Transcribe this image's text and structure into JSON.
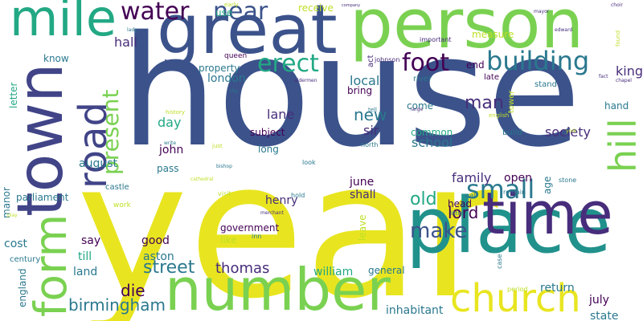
{
  "palette": {
    "yellow": "#e8e520",
    "navy": "#3b528b",
    "indigo": "#414487",
    "purple": "#472d7b",
    "deep": "#440154",
    "teal": "#21918c",
    "teal2": "#2a788e",
    "green": "#22a884",
    "lime": "#7ad151",
    "light": "#bddf26"
  },
  "words": [
    {
      "text": "house",
      "c": "navy"
    },
    {
      "text": "year",
      "c": "yellow"
    },
    {
      "text": "person",
      "c": "lime"
    },
    {
      "text": "great",
      "c": "navy"
    },
    {
      "text": "place",
      "c": "teal"
    },
    {
      "text": "town",
      "c": "indigo"
    },
    {
      "text": "time",
      "c": "purple"
    },
    {
      "text": "number",
      "c": "lime"
    },
    {
      "text": "mile",
      "c": "green"
    },
    {
      "text": "church",
      "c": "yellow"
    },
    {
      "text": "form",
      "c": "lime"
    },
    {
      "text": "road",
      "c": "indigo"
    },
    {
      "text": "hill",
      "c": "lime"
    },
    {
      "text": "water",
      "c": "deep"
    },
    {
      "text": "near",
      "c": "navy"
    },
    {
      "text": "building",
      "c": "teal2"
    },
    {
      "text": "foot",
      "c": "deep"
    },
    {
      "text": "erect",
      "c": "green"
    },
    {
      "text": "small",
      "c": "teal2"
    },
    {
      "text": "present",
      "c": "lime"
    },
    {
      "text": "make",
      "c": "navy"
    },
    {
      "text": "street",
      "c": "teal2"
    },
    {
      "text": "birmingham",
      "c": "teal2"
    },
    {
      "text": "old",
      "c": "green"
    },
    {
      "text": "man",
      "c": "purple"
    },
    {
      "text": "lord",
      "c": "deep"
    },
    {
      "text": "new",
      "c": "teal2"
    },
    {
      "text": "thomas",
      "c": "purple"
    },
    {
      "text": "die",
      "c": "deep"
    },
    {
      "text": "school",
      "c": "teal2"
    },
    {
      "text": "society",
      "c": "purple"
    },
    {
      "text": "hall",
      "c": "purple"
    },
    {
      "text": "local",
      "c": "teal2"
    },
    {
      "text": "lane",
      "c": "purple"
    },
    {
      "text": "day",
      "c": "green"
    },
    {
      "text": "sir",
      "c": "purple"
    },
    {
      "text": "family",
      "c": "purple"
    },
    {
      "text": "king",
      "c": "purple"
    },
    {
      "text": "london",
      "c": "teal2"
    },
    {
      "text": "august",
      "c": "teal2"
    },
    {
      "text": "john",
      "c": "deep"
    },
    {
      "text": "henry",
      "c": "purple"
    },
    {
      "text": "june",
      "c": "deep"
    },
    {
      "text": "shall",
      "c": "purple"
    },
    {
      "text": "open",
      "c": "deep"
    },
    {
      "text": "july",
      "c": "deep"
    },
    {
      "text": "william",
      "c": "green"
    },
    {
      "text": "aston",
      "c": "teal2"
    },
    {
      "text": "good",
      "c": "deep"
    },
    {
      "text": "say",
      "c": "deep"
    },
    {
      "text": "cost",
      "c": "teal2"
    },
    {
      "text": "land",
      "c": "teal2"
    },
    {
      "text": "till",
      "c": "green"
    },
    {
      "text": "return",
      "c": "teal2"
    },
    {
      "text": "inhabitant",
      "c": "teal2"
    },
    {
      "text": "state",
      "c": "teal2"
    },
    {
      "text": "parliament",
      "c": "teal2"
    },
    {
      "text": "property",
      "c": "teal2"
    },
    {
      "text": "government",
      "c": "deep"
    },
    {
      "text": "subject",
      "c": "deep"
    },
    {
      "text": "long",
      "c": "teal2"
    },
    {
      "text": "common",
      "c": "green"
    },
    {
      "text": "come",
      "c": "teal2"
    },
    {
      "text": "bring",
      "c": "deep"
    },
    {
      "text": "end",
      "c": "deep"
    },
    {
      "text": "know",
      "c": "teal2"
    },
    {
      "text": "use",
      "c": "green"
    },
    {
      "text": "hand",
      "c": "teal2"
    },
    {
      "text": "pass",
      "c": "teal2"
    },
    {
      "text": "age",
      "c": "teal2"
    },
    {
      "text": "head",
      "c": "deep"
    },
    {
      "text": "like",
      "c": "light"
    },
    {
      "text": "general",
      "c": "teal2"
    },
    {
      "text": "leave",
      "c": "light"
    },
    {
      "text": "manor",
      "c": "teal2"
    },
    {
      "text": "measure",
      "c": "light"
    },
    {
      "text": "receive",
      "c": "light"
    },
    {
      "text": "letter",
      "c": "green"
    },
    {
      "text": "england",
      "c": "teal2"
    },
    {
      "text": "century",
      "c": "teal2"
    },
    {
      "text": "build",
      "c": "teal2"
    },
    {
      "text": "tower",
      "c": "light"
    },
    {
      "text": "stand",
      "c": "teal2"
    },
    {
      "text": "late",
      "c": "deep"
    },
    {
      "text": "act",
      "c": "purple"
    },
    {
      "text": "queen",
      "c": "deep"
    },
    {
      "text": "river",
      "c": "teal2"
    },
    {
      "text": "johnson",
      "c": "purple"
    },
    {
      "text": "important",
      "c": "purple"
    },
    {
      "text": "history",
      "c": "light"
    },
    {
      "text": "english",
      "c": "light"
    },
    {
      "text": "tell",
      "c": "teal2"
    },
    {
      "text": "castle",
      "c": "teal2"
    },
    {
      "text": "visit",
      "c": "light"
    },
    {
      "text": "work",
      "c": "light"
    },
    {
      "text": "hold",
      "c": "teal2"
    },
    {
      "text": "inn",
      "c": "teal2"
    },
    {
      "text": "wall",
      "c": "teal2"
    },
    {
      "text": "remain",
      "c": "teal2"
    },
    {
      "text": "stone",
      "c": "teal2"
    },
    {
      "text": "little",
      "c": "teal2"
    },
    {
      "text": "period",
      "c": "light"
    },
    {
      "text": "case",
      "c": "teal2"
    },
    {
      "text": "look",
      "c": "teal2"
    },
    {
      "text": "write",
      "c": "teal2"
    },
    {
      "text": "bishop",
      "c": "teal2"
    },
    {
      "text": "north",
      "c": "teal2"
    },
    {
      "text": "just",
      "c": "light"
    },
    {
      "text": "early",
      "c": "light"
    },
    {
      "text": "lady",
      "c": "teal2"
    },
    {
      "text": "choir",
      "c": "purple"
    },
    {
      "text": "edward",
      "c": "purple"
    },
    {
      "text": "mayor",
      "c": "purple"
    },
    {
      "text": "chapel",
      "c": "purple"
    },
    {
      "text": "fact",
      "c": "purple"
    },
    {
      "text": "found",
      "c": "light"
    },
    {
      "text": "aldermen",
      "c": "purple"
    },
    {
      "text": "city",
      "c": "teal2"
    },
    {
      "text": "play",
      "c": "light"
    },
    {
      "text": "cathedral",
      "c": "light"
    },
    {
      "text": "merchant",
      "c": "purple"
    },
    {
      "text": "york",
      "c": "light"
    },
    {
      "text": "large",
      "c": "purple"
    },
    {
      "text": "company",
      "c": "purple"
    }
  ]
}
